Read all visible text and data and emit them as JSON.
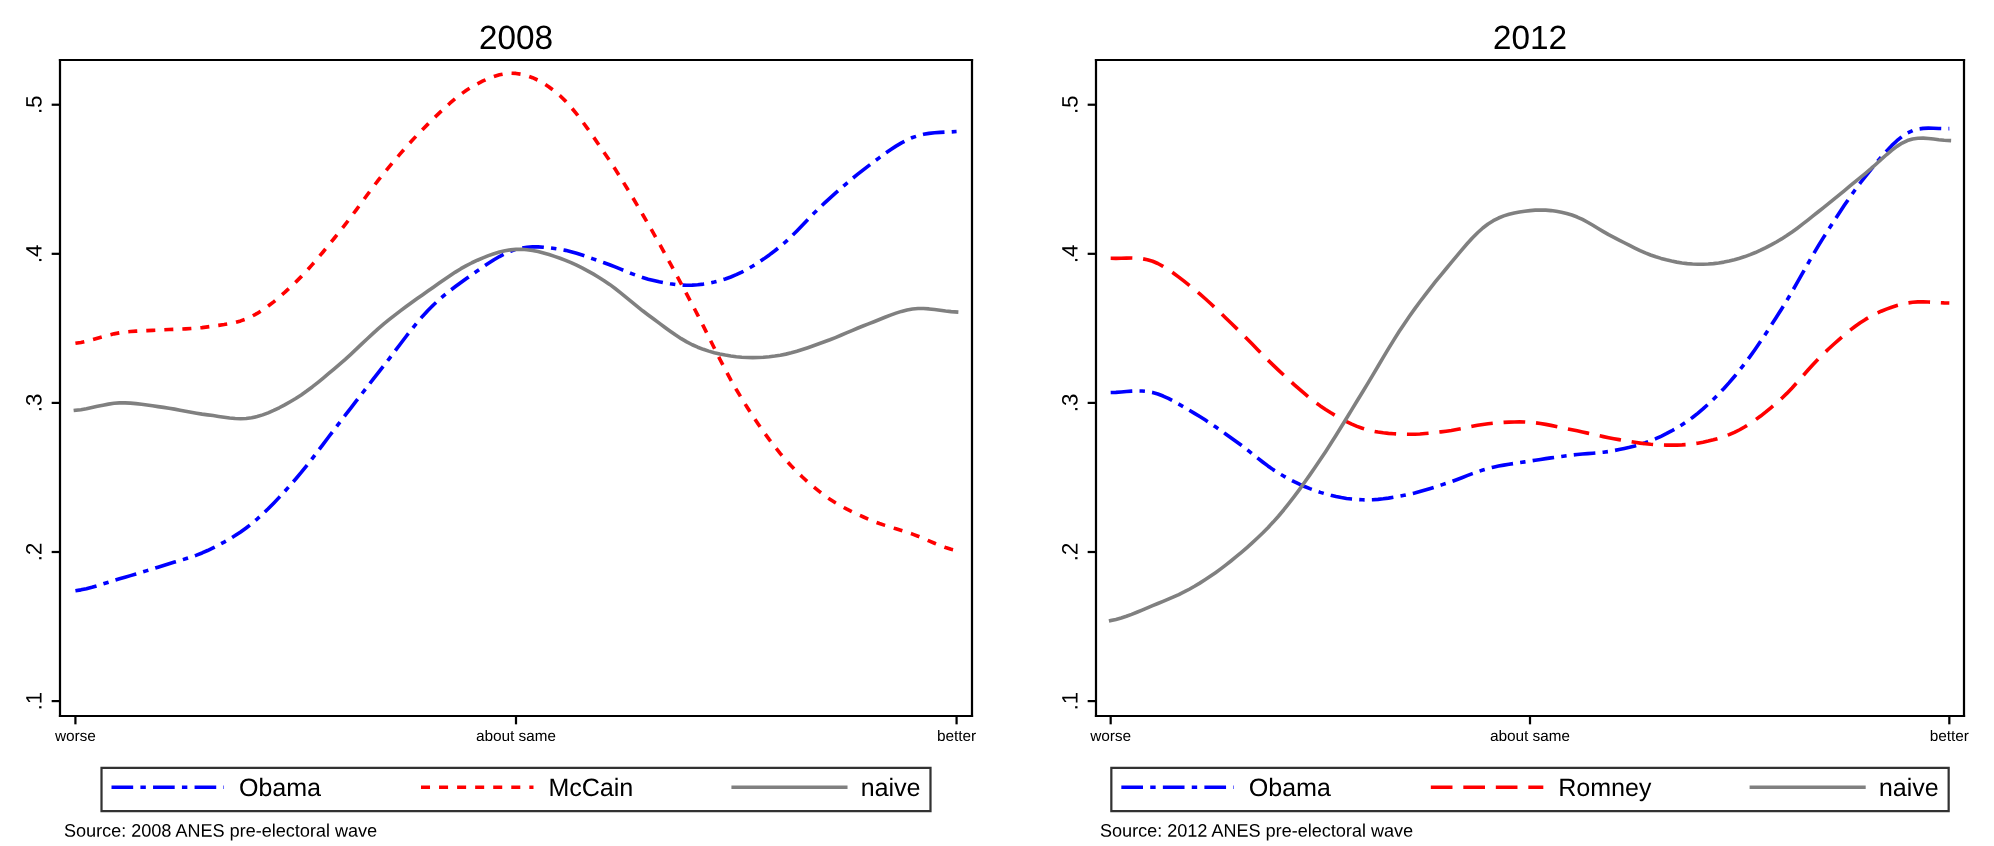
{
  "chart_data": [
    {
      "type": "line",
      "title": "2008",
      "ylim": [
        0.09,
        0.53
      ],
      "categories": [
        "worse",
        null,
        null,
        null,
        null,
        null,
        null,
        null,
        null,
        null,
        "about same",
        null,
        null,
        null,
        null,
        null,
        null,
        null,
        null,
        null,
        "better"
      ],
      "yticks": [
        {
          "value": 0.1,
          "label": ".1"
        },
        {
          "value": 0.2,
          "label": ".2"
        },
        {
          "value": 0.3,
          "label": ".3"
        },
        {
          "value": 0.4,
          "label": ".4"
        },
        {
          "value": 0.5,
          "label": ".5"
        }
      ],
      "grid": false,
      "legend": "bottom",
      "annotations": [
        "Source: 2008 ANES pre-electoral wave"
      ],
      "series": [
        {
          "name": "Obama",
          "color": "#0000ff",
          "line_style": "dashdot",
          "values": [
            0.174,
            0.182,
            0.191,
            0.201,
            0.219,
            0.249,
            0.287,
            0.325,
            0.362,
            0.386,
            0.403,
            0.403,
            0.394,
            0.383,
            0.379,
            0.386,
            0.405,
            0.434,
            0.459,
            0.478,
            0.482
          ]
        },
        {
          "name": "McCain",
          "color": "#ff0000",
          "line_style": "dotted",
          "values": [
            0.34,
            0.347,
            0.349,
            0.351,
            0.358,
            0.381,
            0.415,
            0.454,
            0.487,
            0.512,
            0.521,
            0.506,
            0.468,
            0.42,
            0.366,
            0.309,
            0.266,
            0.238,
            0.222,
            0.212,
            0.201
          ]
        },
        {
          "name": "naive",
          "color": "#808080",
          "line_style": "solid",
          "values": [
            0.295,
            0.3,
            0.297,
            0.292,
            0.29,
            0.303,
            0.326,
            0.353,
            0.375,
            0.394,
            0.403,
            0.397,
            0.382,
            0.359,
            0.339,
            0.331,
            0.332,
            0.341,
            0.353,
            0.363,
            0.361
          ]
        }
      ]
    },
    {
      "type": "line",
      "title": "2012",
      "ylim": [
        0.09,
        0.53
      ],
      "categories": [
        "worse",
        null,
        null,
        null,
        null,
        null,
        null,
        null,
        null,
        null,
        "about same",
        null,
        null,
        null,
        null,
        null,
        null,
        null,
        null,
        null,
        "better"
      ],
      "yticks": [
        {
          "value": 0.1,
          "label": ".1"
        },
        {
          "value": 0.2,
          "label": ".2"
        },
        {
          "value": 0.3,
          "label": ".3"
        },
        {
          "value": 0.4,
          "label": ".4"
        },
        {
          "value": 0.5,
          "label": ".5"
        }
      ],
      "grid": false,
      "legend": "bottom",
      "annotations": [
        "Source: 2012 ANES pre-electoral wave"
      ],
      "series": [
        {
          "name": "Obama",
          "color": "#0000ff",
          "line_style": "dashdot",
          "values": [
            0.307,
            0.307,
            0.293,
            0.274,
            0.253,
            0.24,
            0.235,
            0.238,
            0.246,
            0.256,
            0.261,
            0.265,
            0.268,
            0.276,
            0.293,
            0.322,
            0.363,
            0.411,
            0.452,
            0.481,
            0.484
          ]
        },
        {
          "name": "Romney",
          "color": "#ff0000",
          "line_style": "dashed",
          "values": [
            0.397,
            0.395,
            0.376,
            0.35,
            0.322,
            0.298,
            0.283,
            0.279,
            0.281,
            0.286,
            0.287,
            0.282,
            0.276,
            0.272,
            0.273,
            0.282,
            0.303,
            0.333,
            0.356,
            0.367,
            0.367
          ]
        },
        {
          "name": "naive",
          "color": "#808080",
          "line_style": "solid",
          "values": [
            0.154,
            0.164,
            0.177,
            0.197,
            0.224,
            0.262,
            0.307,
            0.353,
            0.39,
            0.42,
            0.429,
            0.426,
            0.411,
            0.398,
            0.393,
            0.397,
            0.41,
            0.431,
            0.454,
            0.476,
            0.476
          ]
        }
      ]
    }
  ]
}
